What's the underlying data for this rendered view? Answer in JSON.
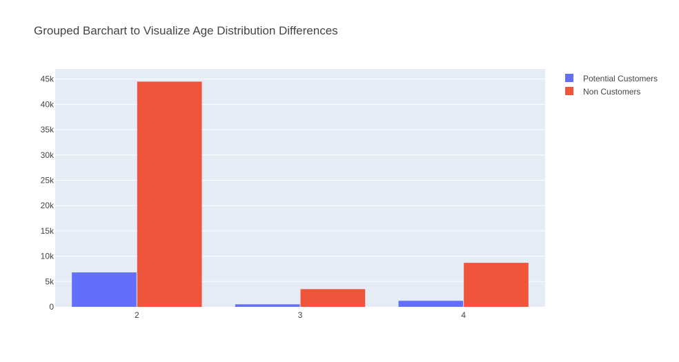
{
  "chart_data": {
    "type": "bar",
    "title": "Grouped Barchart to Visualize Age Distribution Differences",
    "xlabel": "",
    "ylabel": "",
    "categories": [
      "2",
      "3",
      "4"
    ],
    "series": [
      {
        "name": "Potential Customers",
        "values": [
          6800,
          500,
          1200
        ],
        "color": "#636efa"
      },
      {
        "name": "Non Customers",
        "values": [
          44500,
          3500,
          8700
        ],
        "color": "#ef553b"
      }
    ],
    "ylim": [
      0,
      47000
    ],
    "yticks": [
      0,
      5000,
      10000,
      15000,
      20000,
      25000,
      30000,
      35000,
      40000,
      45000
    ],
    "ytick_labels": [
      "0",
      "5k",
      "10k",
      "15k",
      "20k",
      "25k",
      "30k",
      "35k",
      "40k",
      "45k"
    ],
    "grid": true,
    "legend_position": "right",
    "plot_background": "#e5ecf6"
  }
}
